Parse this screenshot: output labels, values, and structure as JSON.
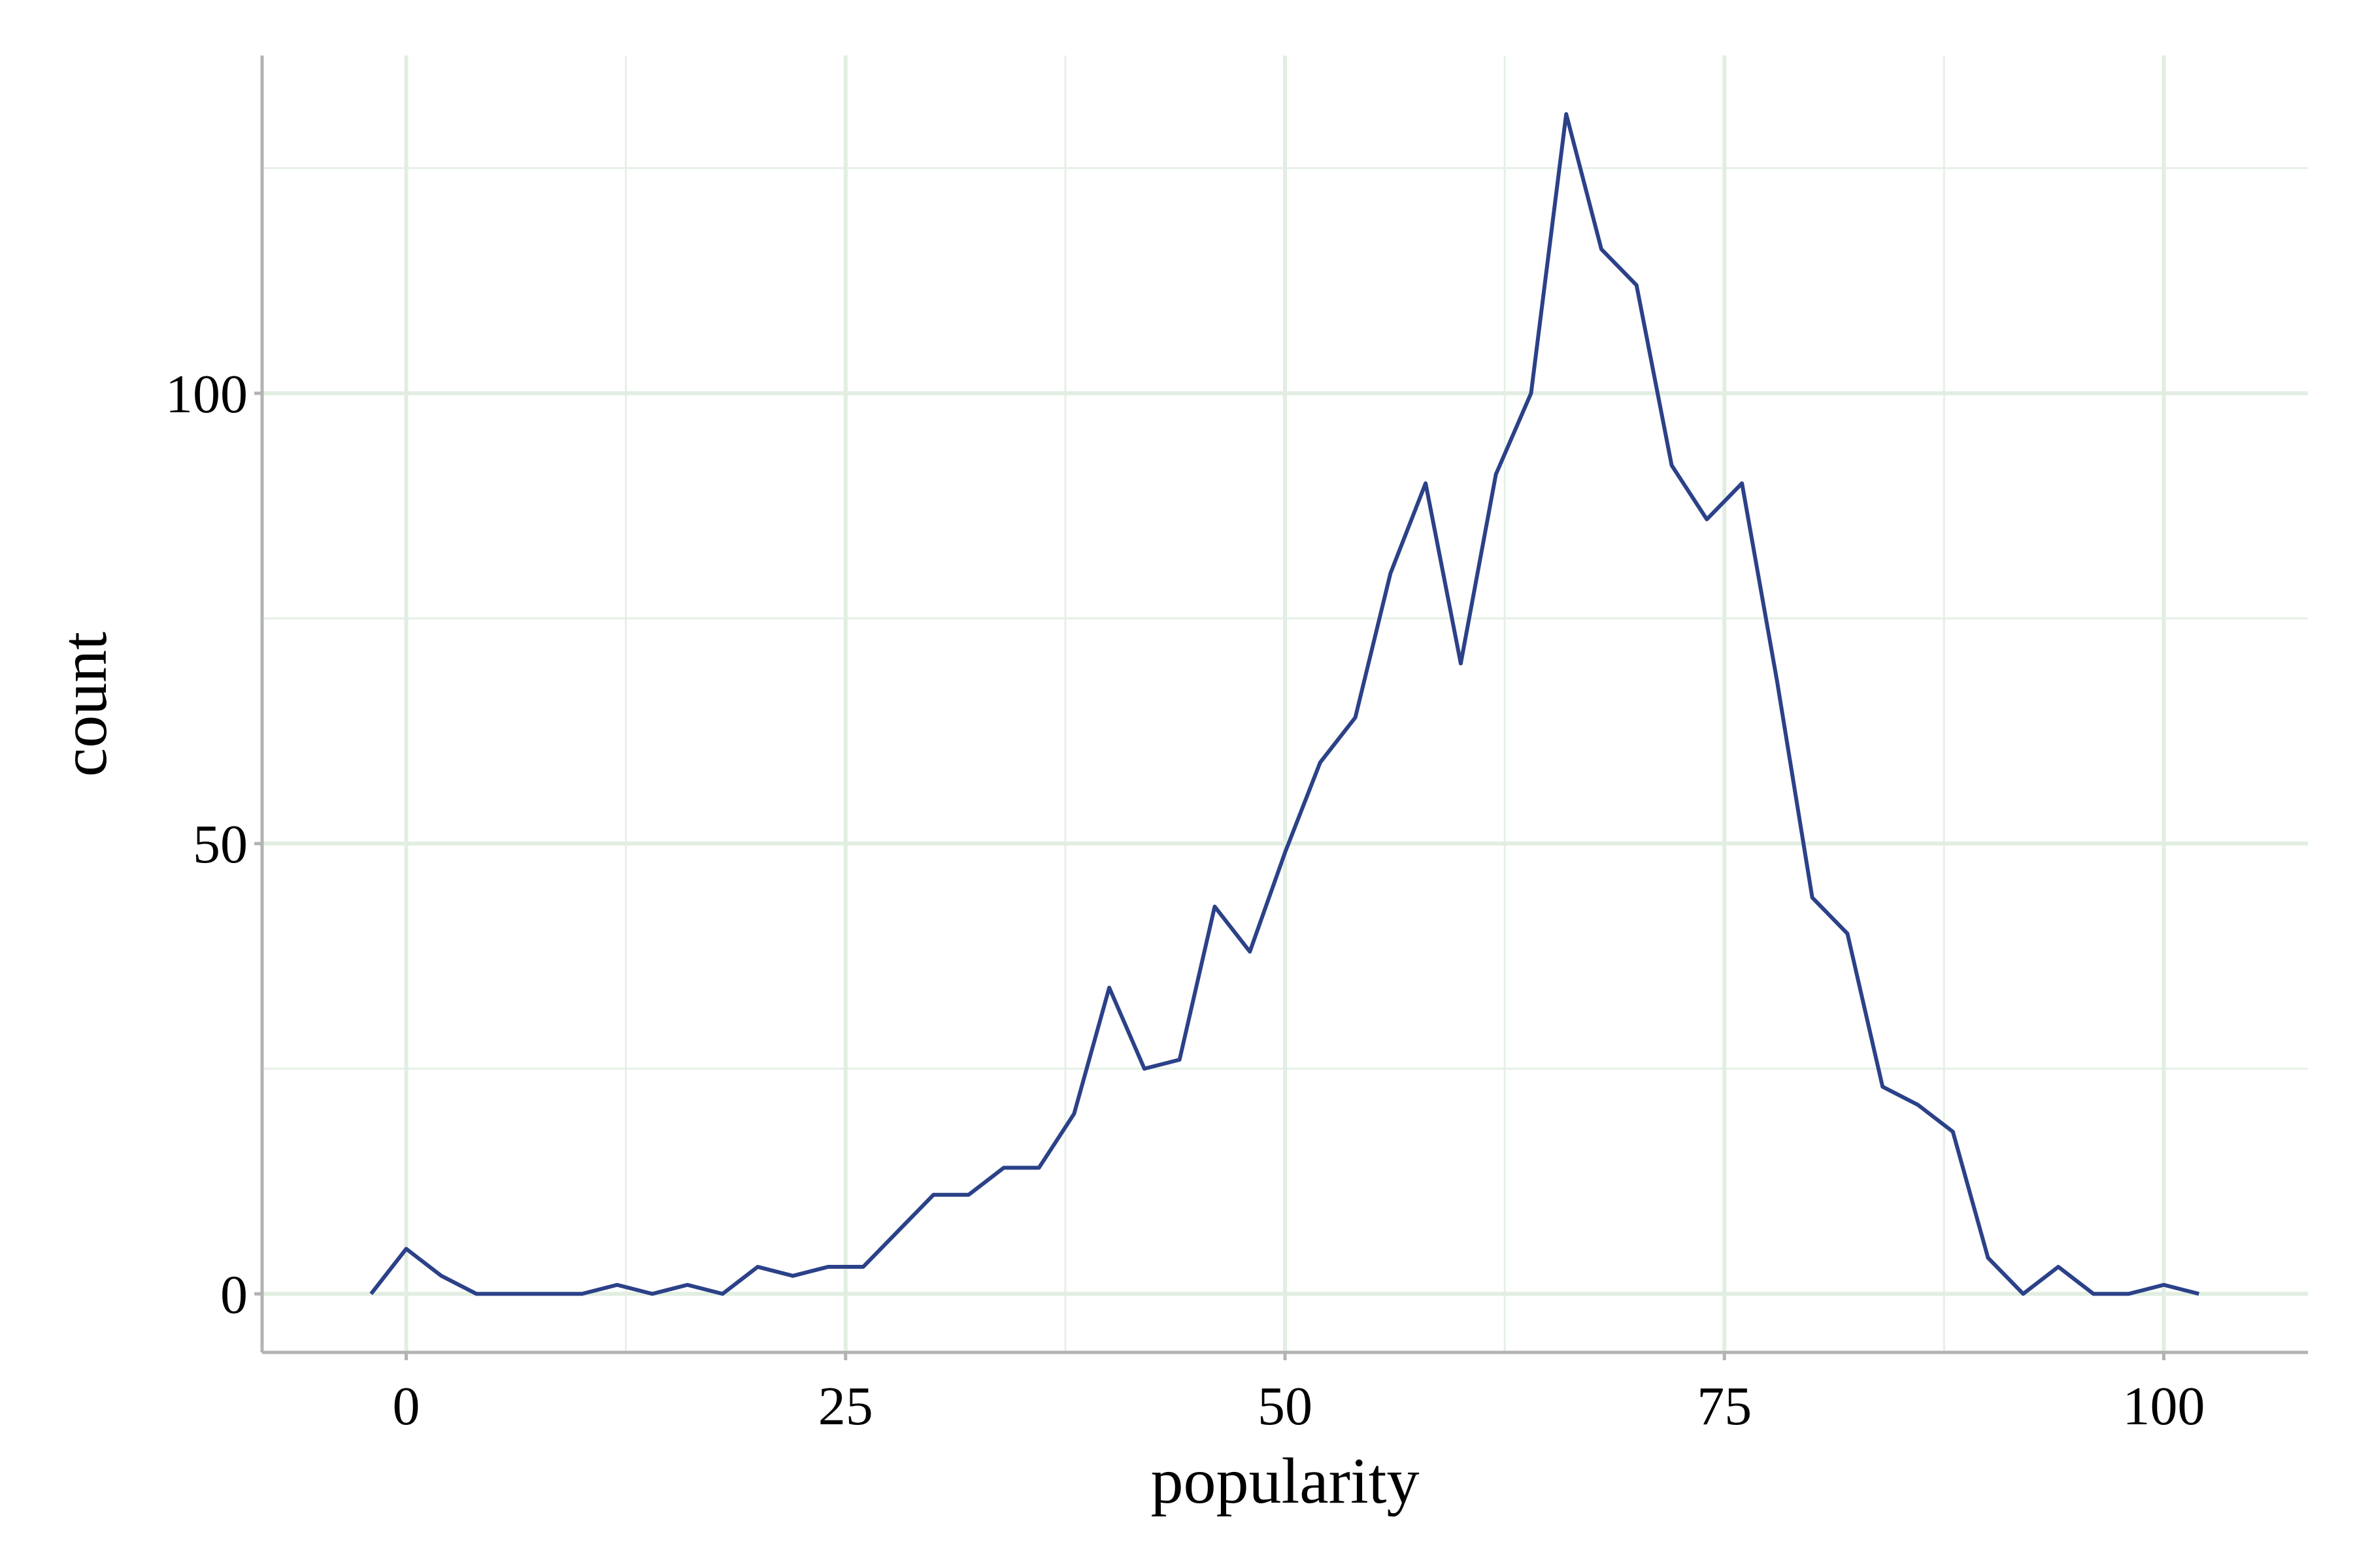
{
  "chart_data": {
    "type": "line",
    "x_label": "popularity",
    "y_label": "count",
    "x": [
      -2,
      0,
      2,
      4,
      6,
      8,
      10,
      12,
      14,
      16,
      18,
      20,
      22,
      24,
      26,
      28,
      30,
      32,
      34,
      36,
      38,
      40,
      42,
      44,
      46,
      48,
      50,
      52,
      54,
      56,
      58,
      60,
      62,
      64,
      66,
      68,
      70,
      72,
      74,
      76,
      78,
      80,
      82,
      84,
      86,
      88,
      90,
      92,
      94,
      96,
      98,
      100,
      102
    ],
    "series": [
      {
        "color": "#2b4188",
        "values": [
          0,
          5,
          2,
          0,
          0,
          0,
          0,
          1,
          0,
          1,
          0,
          3,
          2,
          3,
          3,
          7,
          11,
          11,
          14,
          14,
          20,
          34,
          25,
          26,
          43,
          38,
          49,
          59,
          64,
          80,
          90,
          70,
          91,
          100,
          131,
          116,
          112,
          92,
          86,
          90,
          68,
          44,
          40,
          23,
          21,
          18,
          4,
          0,
          3,
          0,
          0,
          1,
          0
        ]
      }
    ],
    "xlim": [
      -8.2,
      108.2
    ],
    "ylim": [
      -6.5,
      137.5
    ],
    "xticks": [
      0,
      25,
      50,
      75,
      100
    ],
    "yticks": [
      0,
      50,
      100
    ],
    "xticks_minor": [
      12.5,
      37.5,
      62.5,
      87.5
    ],
    "yticks_minor": [
      25,
      75,
      125
    ],
    "grid": true
  }
}
